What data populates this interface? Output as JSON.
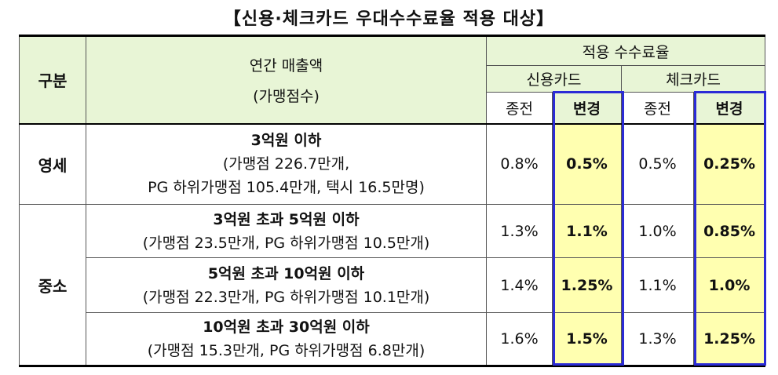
{
  "title": "【신용·체크카드 우대수수료율 적용 대상】",
  "header": {
    "gubun": "구분",
    "sales": "연간 매출액",
    "sales_sub": "(가맹점수)",
    "rate": "적용 수수료율",
    "credit": "신용카드",
    "check": "체크카드",
    "before": "종전",
    "after": "변경"
  },
  "rows": [
    {
      "group": "영세",
      "range": "3억원 이하",
      "detail1": "(가맹점 226.7만개,",
      "detail2": "PG 하위가맹점 105.4만개, 택시 16.5만명)",
      "credit_before": "0.8%",
      "credit_after": "0.5%",
      "check_before": "0.5%",
      "check_after": "0.25%"
    },
    {
      "group": "중소",
      "range": "3억원 초과 5억원 이하",
      "detail1": "(가맹점 23.5만개, PG 하위가맹점 10.5만개)",
      "credit_before": "1.3%",
      "credit_after": "1.1%",
      "check_before": "1.0%",
      "check_after": "0.85%"
    },
    {
      "range": "5억원 초과 10억원 이하",
      "detail1": "(가맹점 22.3만개, PG 하위가맹점 10.1만개)",
      "credit_before": "1.4%",
      "credit_after": "1.25%",
      "check_before": "1.1%",
      "check_after": "1.0%"
    },
    {
      "range": "10억원 초과 30억원 이하",
      "detail1": "(가맹점 15.3만개, PG 하위가맹점 6.8만개)",
      "credit_before": "1.6%",
      "credit_after": "1.5%",
      "check_before": "1.3%",
      "check_after": "1.25%"
    }
  ]
}
